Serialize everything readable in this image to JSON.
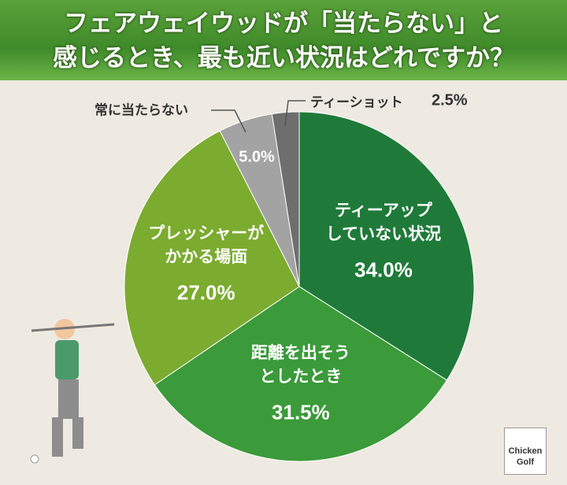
{
  "chart_data": {
    "type": "pie",
    "title": "フェアウェイウッドが「当たらない」と\n感じるとき、最も近い状況はどれですか？",
    "categories": [
      "ティーアップ\nしていない状況",
      "距離を出そう\nとしたとき",
      "プレッシャーが\nかかる場面",
      "常に当たらない",
      "ティーショット"
    ],
    "values": [
      34.0,
      31.5,
      27.0,
      5.0,
      2.5
    ],
    "value_labels": [
      "34.0%",
      "31.5%",
      "27.0%",
      "5.0%",
      "2.5%"
    ],
    "colors": [
      "#1f7a3a",
      "#3b9a3a",
      "#7bab2f",
      "#a3a3a3",
      "#6e6e6e"
    ]
  },
  "logo": "Chicken\nGolf"
}
